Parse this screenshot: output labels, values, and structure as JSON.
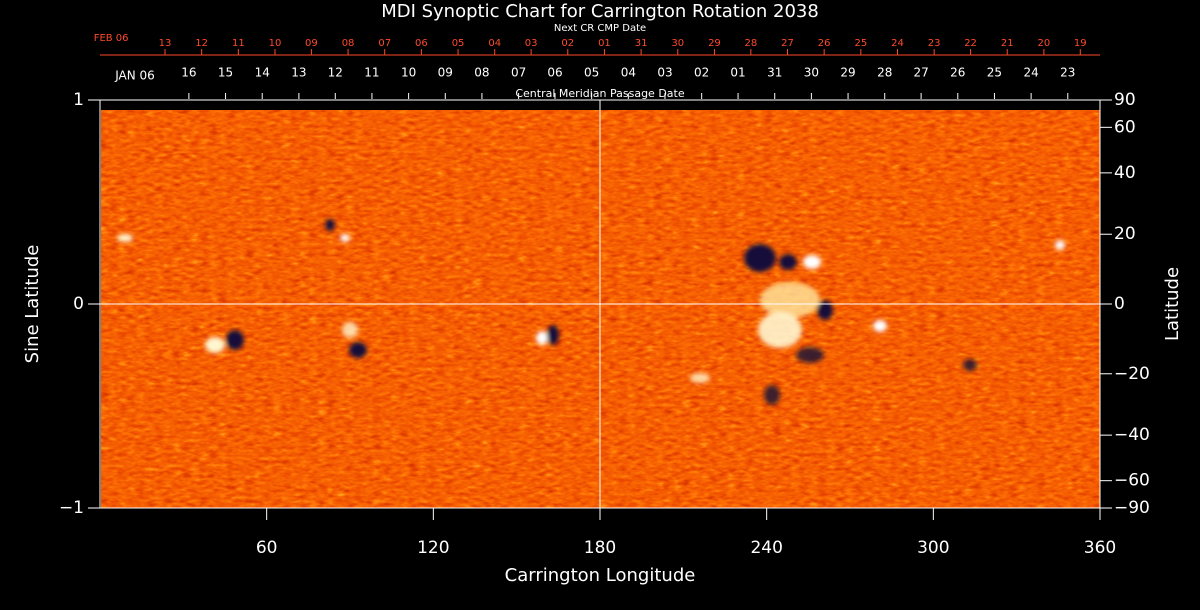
{
  "chart_data": {
    "type": "image",
    "title": "MDI Synoptic Chart for Carrington Rotation 2038",
    "xlabel": "Carrington Longitude",
    "ylabel": "Sine Latitude",
    "y2label": "Latitude",
    "xlim": [
      0,
      360
    ],
    "xticks": [
      60,
      120,
      180,
      240,
      300,
      360
    ],
    "ylim": [
      -1,
      1
    ],
    "yticks": [
      {
        "value": -1,
        "label": "−1"
      },
      0,
      1
    ],
    "y2lim": [
      -90,
      90
    ],
    "y2scale": "sine",
    "y2ticks": [
      90,
      60,
      40,
      20,
      0,
      {
        "value": -20,
        "label": "−20"
      },
      {
        "value": -40,
        "label": "−40"
      },
      {
        "value": -60,
        "label": "−60"
      },
      {
        "value": -90,
        "label": "−90"
      }
    ],
    "top_axes": [
      {
        "label": "Next CR CMP Date",
        "color": "#ff4a2a",
        "ticks": [
          {
            "value": 4,
            "label": "FEB 06"
          },
          {
            "value": 23.4,
            "label": "13"
          },
          {
            "value": 36.6,
            "label": "12"
          },
          {
            "value": 49.8,
            "label": "11"
          },
          {
            "value": 63.0,
            "label": "10"
          },
          {
            "value": 76.1,
            "label": "09"
          },
          {
            "value": 89.3,
            "label": "08"
          },
          {
            "value": 102.5,
            "label": "07"
          },
          {
            "value": 115.7,
            "label": "06"
          },
          {
            "value": 128.9,
            "label": "05"
          },
          {
            "value": 142.1,
            "label": "04"
          },
          {
            "value": 155.2,
            "label": "03"
          },
          {
            "value": 168.4,
            "label": "02"
          },
          {
            "value": 181.6,
            "label": "01"
          },
          {
            "value": 194.8,
            "label": "31"
          },
          {
            "value": 208.0,
            "label": "30"
          },
          {
            "value": 221.2,
            "label": "29"
          },
          {
            "value": 234.3,
            "label": "28"
          },
          {
            "value": 247.5,
            "label": "27"
          },
          {
            "value": 260.7,
            "label": "26"
          },
          {
            "value": 273.9,
            "label": "25"
          },
          {
            "value": 287.1,
            "label": "24"
          },
          {
            "value": 300.3,
            "label": "23"
          },
          {
            "value": 313.4,
            "label": "22"
          },
          {
            "value": 326.6,
            "label": "21"
          },
          {
            "value": 339.8,
            "label": "20"
          },
          {
            "value": 352.9,
            "label": "19"
          }
        ]
      },
      {
        "label": "Central Meridian Passage Date",
        "color": "#ffffff",
        "ticks": [
          {
            "value": 12.6,
            "label": "JAN 06"
          },
          {
            "value": 32.0,
            "label": "16"
          },
          {
            "value": 45.2,
            "label": "15"
          },
          {
            "value": 58.4,
            "label": "14"
          },
          {
            "value": 71.6,
            "label": "13"
          },
          {
            "value": 84.7,
            "label": "12"
          },
          {
            "value": 97.9,
            "label": "11"
          },
          {
            "value": 111.1,
            "label": "10"
          },
          {
            "value": 124.3,
            "label": "09"
          },
          {
            "value": 137.5,
            "label": "08"
          },
          {
            "value": 150.7,
            "label": "07"
          },
          {
            "value": 163.8,
            "label": "06"
          },
          {
            "value": 177.0,
            "label": "05"
          },
          {
            "value": 190.2,
            "label": "04"
          },
          {
            "value": 203.4,
            "label": "03"
          },
          {
            "value": 216.6,
            "label": "02"
          },
          {
            "value": 229.7,
            "label": "01"
          },
          {
            "value": 242.9,
            "label": "31"
          },
          {
            "value": 256.1,
            "label": "30"
          },
          {
            "value": 269.3,
            "label": "29"
          },
          {
            "value": 282.5,
            "label": "28"
          },
          {
            "value": 295.6,
            "label": "27"
          },
          {
            "value": 308.8,
            "label": "26"
          },
          {
            "value": 322.0,
            "label": "25"
          },
          {
            "value": 335.2,
            "label": "24"
          },
          {
            "value": 348.4,
            "label": "23"
          }
        ]
      }
    ]
  }
}
